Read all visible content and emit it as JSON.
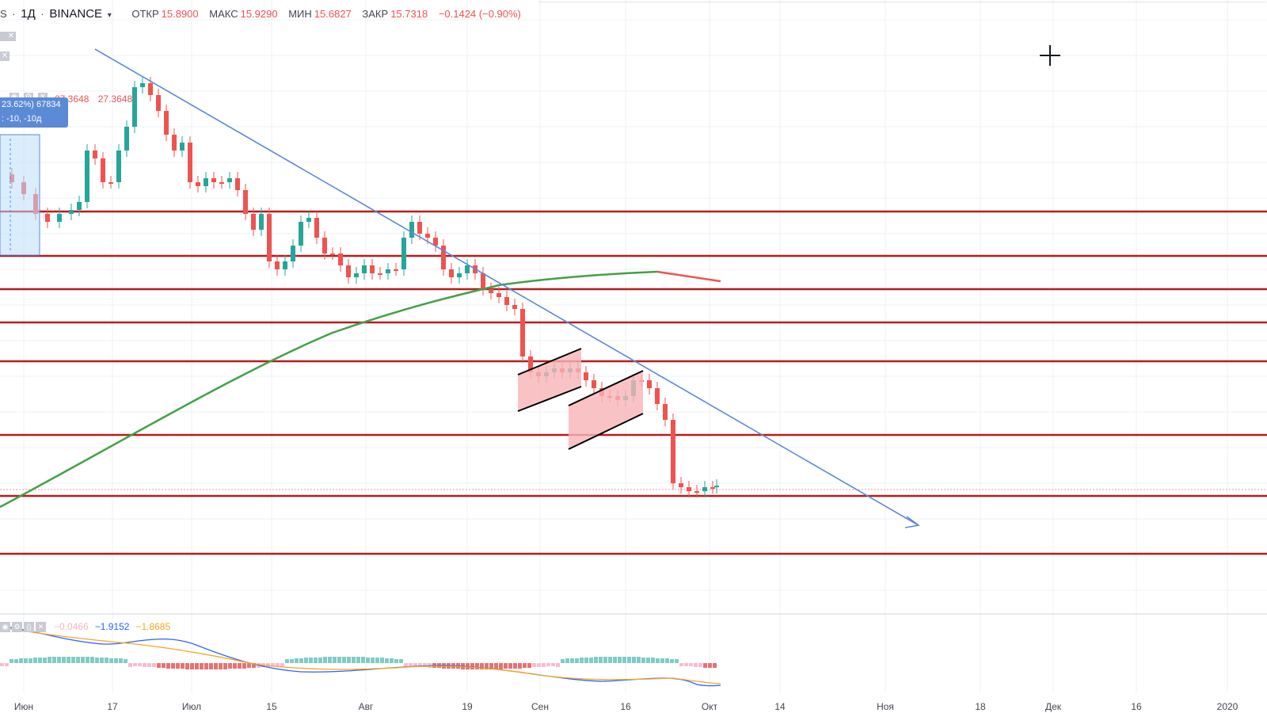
{
  "header": {
    "symbol_fragment": "S",
    "interval": "1Д",
    "exchange": "BINANCE",
    "ohlc": [
      {
        "label": "ОТКР",
        "value": "15.8900"
      },
      {
        "label": "МАКС",
        "value": "15.9290"
      },
      {
        "label": "МИН",
        "value": "15.6827"
      },
      {
        "label": "ЗАКР",
        "value": "15.7318"
      }
    ],
    "change": "−0.1424 (−0.90%)"
  },
  "measure": {
    "line1": "23.62%) 67834",
    "line2": ": -10, -10д"
  },
  "indicator_values": [
    "27.3648",
    "27.3648"
  ],
  "macd": {
    "values": [
      "−0.0466",
      "−1.9152",
      "−1.8685"
    ],
    "colors": [
      "#f4b6b8",
      "#2962ff",
      "#f5a623"
    ]
  },
  "colors": {
    "up_candle": "#26a69a",
    "down_candle": "#ef5350",
    "level_line": "#b71c1c",
    "trend_line": "#5b8ad6",
    "ma_line": "#43a047",
    "ma_tail": "#ef5350",
    "flag_fill": "#f8b4b6",
    "measure_box": "#5b8ad6"
  },
  "icons": [
    "crosshair-icon",
    "eye-icon",
    "gear-icon",
    "close-icon",
    "braces-icon",
    "caret-down-icon",
    "arrow-right-icon"
  ],
  "x_axis_labels": [
    "Июн",
    "17",
    "Июл",
    "15",
    "Авг",
    "19",
    "Сен",
    "16",
    "Окт",
    "14",
    "Ноя",
    "18",
    "Дек",
    "16",
    "2020"
  ],
  "chart_data": {
    "type": "candlestick",
    "price_range": [
      9,
      33
    ],
    "x_axis_labels": [
      "Июн",
      "17",
      "Июл",
      "15",
      "Авг",
      "19",
      "Сен",
      "16",
      "Окт",
      "14",
      "Ноя",
      "18",
      "Дек",
      "16",
      "2020"
    ],
    "horizontal_levels": [
      25.8,
      24.1,
      22.8,
      21.5,
      19.9,
      17.1,
      14.7,
      12.5
    ],
    "last_price": 15.73,
    "moving_average_trend": "rising then flattening",
    "annotations": [
      "descending trend line",
      "two bearish flag channels",
      "horizontal support/resistance levels"
    ]
  }
}
